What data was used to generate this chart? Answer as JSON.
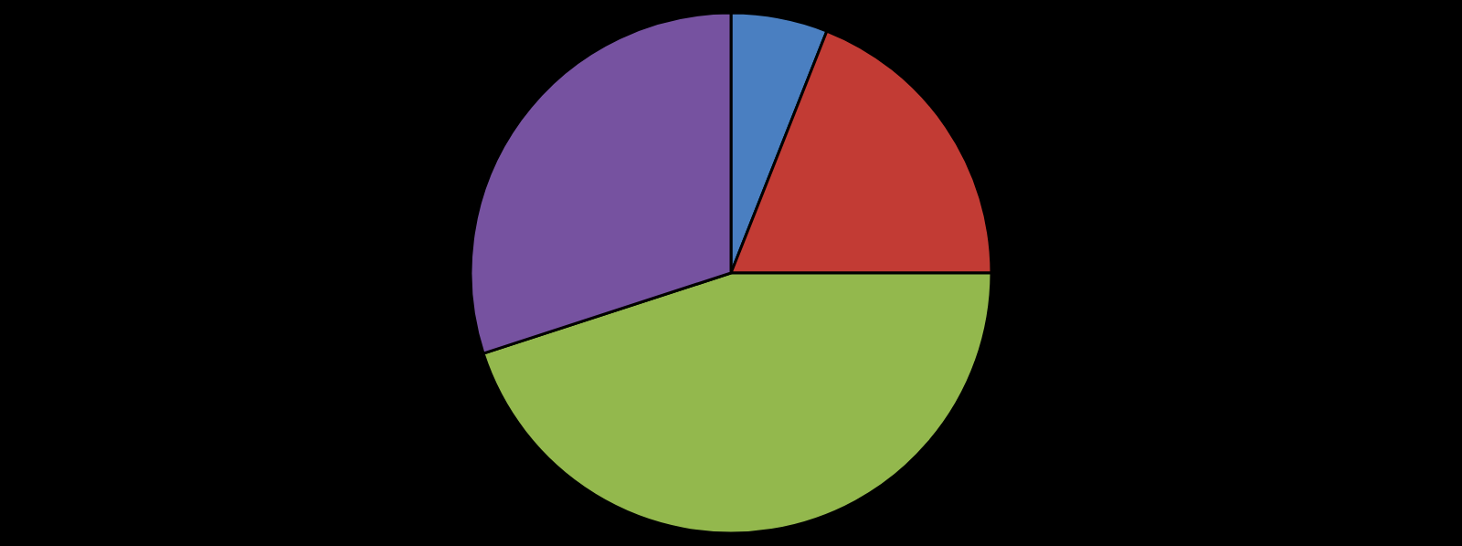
{
  "chart_data": {
    "type": "pie",
    "categories": [
      null,
      null,
      null,
      null
    ],
    "values": [
      6,
      19,
      45,
      30
    ],
    "colors": [
      "#4a7fc1",
      "#c23b34",
      "#93b84d",
      "#7652a0"
    ]
  }
}
